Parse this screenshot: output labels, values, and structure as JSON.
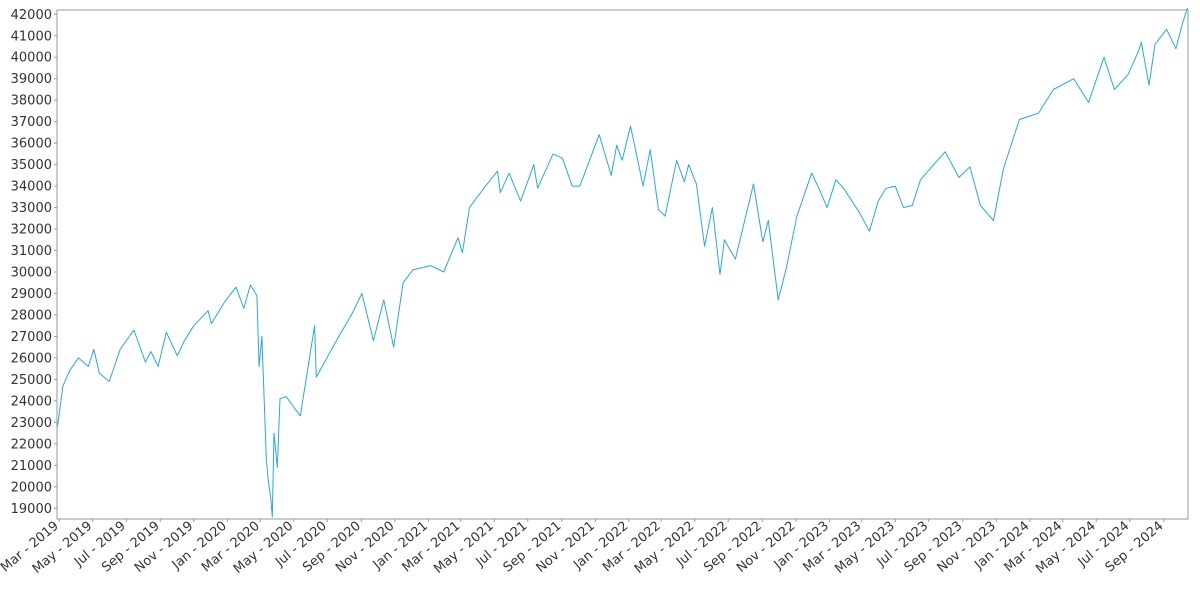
{
  "chart_data": {
    "type": "line",
    "title": "",
    "xlabel": "",
    "ylabel": "",
    "grid": false,
    "legend": "none",
    "line_color": "#29a8e0",
    "x_range": [
      "2019-02-25",
      "2024-10-15"
    ],
    "ylim": [
      18500,
      42200
    ],
    "y_ticks": [
      19000,
      20000,
      21000,
      22000,
      23000,
      24000,
      25000,
      26000,
      27000,
      28000,
      29000,
      30000,
      31000,
      32000,
      33000,
      34000,
      35000,
      36000,
      37000,
      38000,
      39000,
      40000,
      41000,
      42000
    ],
    "y_tick_labels": [
      "19000",
      "20000",
      "21000",
      "22000",
      "23000",
      "24000",
      "25000",
      "26000",
      "27000",
      "28000",
      "29000",
      "30000",
      "31000",
      "32000",
      "33000",
      "34000",
      "35000",
      "36000",
      "37000",
      "38000",
      "39000",
      "40000",
      "41000",
      "42000"
    ],
    "x_ticks": [
      "2019-03-01",
      "2019-05-01",
      "2019-07-01",
      "2019-09-01",
      "2019-11-01",
      "2020-01-01",
      "2020-03-01",
      "2020-05-01",
      "2020-07-01",
      "2020-09-01",
      "2020-11-01",
      "2021-01-01",
      "2021-03-01",
      "2021-05-01",
      "2021-07-01",
      "2021-09-01",
      "2021-11-01",
      "2022-01-01",
      "2022-03-01",
      "2022-05-01",
      "2022-07-01",
      "2022-09-01",
      "2022-11-01",
      "2023-01-01",
      "2023-03-01",
      "2023-05-01",
      "2023-07-01",
      "2023-09-01",
      "2023-11-01",
      "2024-01-01",
      "2024-03-01",
      "2024-05-01",
      "2024-07-01",
      "2024-09-01"
    ],
    "x_tick_labels": [
      "Mar - 2019",
      "May - 2019",
      "Jul - 2019",
      "Sep - 2019",
      "Nov - 2019",
      "Jan - 2020",
      "Mar - 2020",
      "May - 2020",
      "Jul - 2020",
      "Sep - 2020",
      "Nov - 2020",
      "Jan - 2021",
      "Mar - 2021",
      "May - 2021",
      "Jul - 2021",
      "Sep - 2021",
      "Nov - 2021",
      "Jan - 2022",
      "Mar - 2022",
      "May - 2022",
      "Jul - 2022",
      "Sep - 2022",
      "Nov - 2022",
      "Jan - 2023",
      "Mar - 2023",
      "May - 2023",
      "Jul - 2023",
      "Sep - 2023",
      "Nov - 2023",
      "Jan - 2024",
      "Mar - 2024",
      "May - 2024",
      "Jul - 2024",
      "Sep - 2024"
    ],
    "series": [
      {
        "x": [
          "2019-02-26",
          "2019-03-08",
          "2019-03-20",
          "2019-04-05",
          "2019-04-23",
          "2019-05-03",
          "2019-05-13",
          "2019-05-31",
          "2019-06-20",
          "2019-07-15",
          "2019-08-05",
          "2019-08-15",
          "2019-08-28",
          "2019-09-12",
          "2019-10-02",
          "2019-10-15",
          "2019-11-01",
          "2019-11-27",
          "2019-12-03",
          "2019-12-27",
          "2020-01-17",
          "2020-01-31",
          "2020-02-12",
          "2020-02-24",
          "2020-02-28",
          "2020-03-04",
          "2020-03-12",
          "2020-03-16",
          "2020-03-20",
          "2020-03-23",
          "2020-03-26",
          "2020-04-01",
          "2020-04-06",
          "2020-04-17",
          "2020-05-13",
          "2020-06-08",
          "2020-06-11",
          "2020-06-26",
          "2020-07-22",
          "2020-08-14",
          "2020-09-02",
          "2020-09-23",
          "2020-10-12",
          "2020-10-30",
          "2020-11-16",
          "2020-12-04",
          "2021-01-05",
          "2021-01-29",
          "2021-02-24",
          "2021-03-04",
          "2021-03-17",
          "2021-04-15",
          "2021-05-07",
          "2021-05-12",
          "2021-05-28",
          "2021-06-18",
          "2021-07-12",
          "2021-07-19",
          "2021-08-16",
          "2021-09-02",
          "2021-09-20",
          "2021-10-04",
          "2021-11-08",
          "2021-11-30",
          "2021-12-10",
          "2021-12-20",
          "2022-01-04",
          "2022-01-27",
          "2022-02-09",
          "2022-02-24",
          "2022-03-08",
          "2022-03-29",
          "2022-04-12",
          "2022-04-20",
          "2022-05-04",
          "2022-05-19",
          "2022-06-02",
          "2022-06-16",
          "2022-06-24",
          "2022-07-14",
          "2022-08-16",
          "2022-09-02",
          "2022-09-12",
          "2022-09-30",
          "2022-10-14",
          "2022-11-03",
          "2022-11-30",
          "2022-12-13",
          "2022-12-28",
          "2023-01-13",
          "2023-01-27",
          "2023-02-24",
          "2023-03-15",
          "2023-03-31",
          "2023-04-14",
          "2023-05-01",
          "2023-05-16",
          "2023-06-01",
          "2023-06-16",
          "2023-07-31",
          "2023-08-25",
          "2023-09-14",
          "2023-10-03",
          "2023-10-27",
          "2023-11-14",
          "2023-12-13",
          "2024-01-17",
          "2024-02-13",
          "2024-03-21",
          "2024-04-17",
          "2024-05-15",
          "2024-06-03",
          "2024-06-28",
          "2024-07-17",
          "2024-07-22",
          "2024-08-05",
          "2024-08-16",
          "2024-09-06",
          "2024-09-23",
          "2024-10-04",
          "2024-10-14"
        ],
        "y": [
          22800,
          24700,
          25400,
          26000,
          25600,
          26400,
          25300,
          24900,
          26400,
          27300,
          25800,
          26300,
          25600,
          27200,
          26100,
          26800,
          27500,
          28200,
          27600,
          28600,
          29300,
          28300,
          29400,
          28900,
          25600,
          27000,
          21300,
          20200,
          19500,
          18600,
          22500,
          20900,
          24100,
          24200,
          23300,
          27500,
          25100,
          25800,
          27000,
          28000,
          29000,
          26800,
          28700,
          26500,
          29500,
          30100,
          30300,
          30000,
          31600,
          30900,
          33000,
          34000,
          34700,
          33700,
          34600,
          33300,
          35000,
          33900,
          35500,
          35300,
          34000,
          34000,
          36400,
          34500,
          35900,
          35200,
          36800,
          34000,
          35700,
          32900,
          32600,
          35200,
          34200,
          35000,
          34100,
          31200,
          33000,
          29900,
          31500,
          30600,
          34100,
          31400,
          32400,
          28700,
          30100,
          32600,
          34600,
          33900,
          33000,
          34300,
          33900,
          32800,
          31900,
          33300,
          33900,
          34000,
          33000,
          33100,
          34300,
          35600,
          34400,
          34900,
          33100,
          32400,
          34800,
          37100,
          37400,
          38500,
          39000,
          37900,
          40000,
          38500,
          39200,
          40300,
          40700,
          38700,
          40600,
          41300,
          40400,
          41500,
          42300
        ]
      }
    ]
  }
}
